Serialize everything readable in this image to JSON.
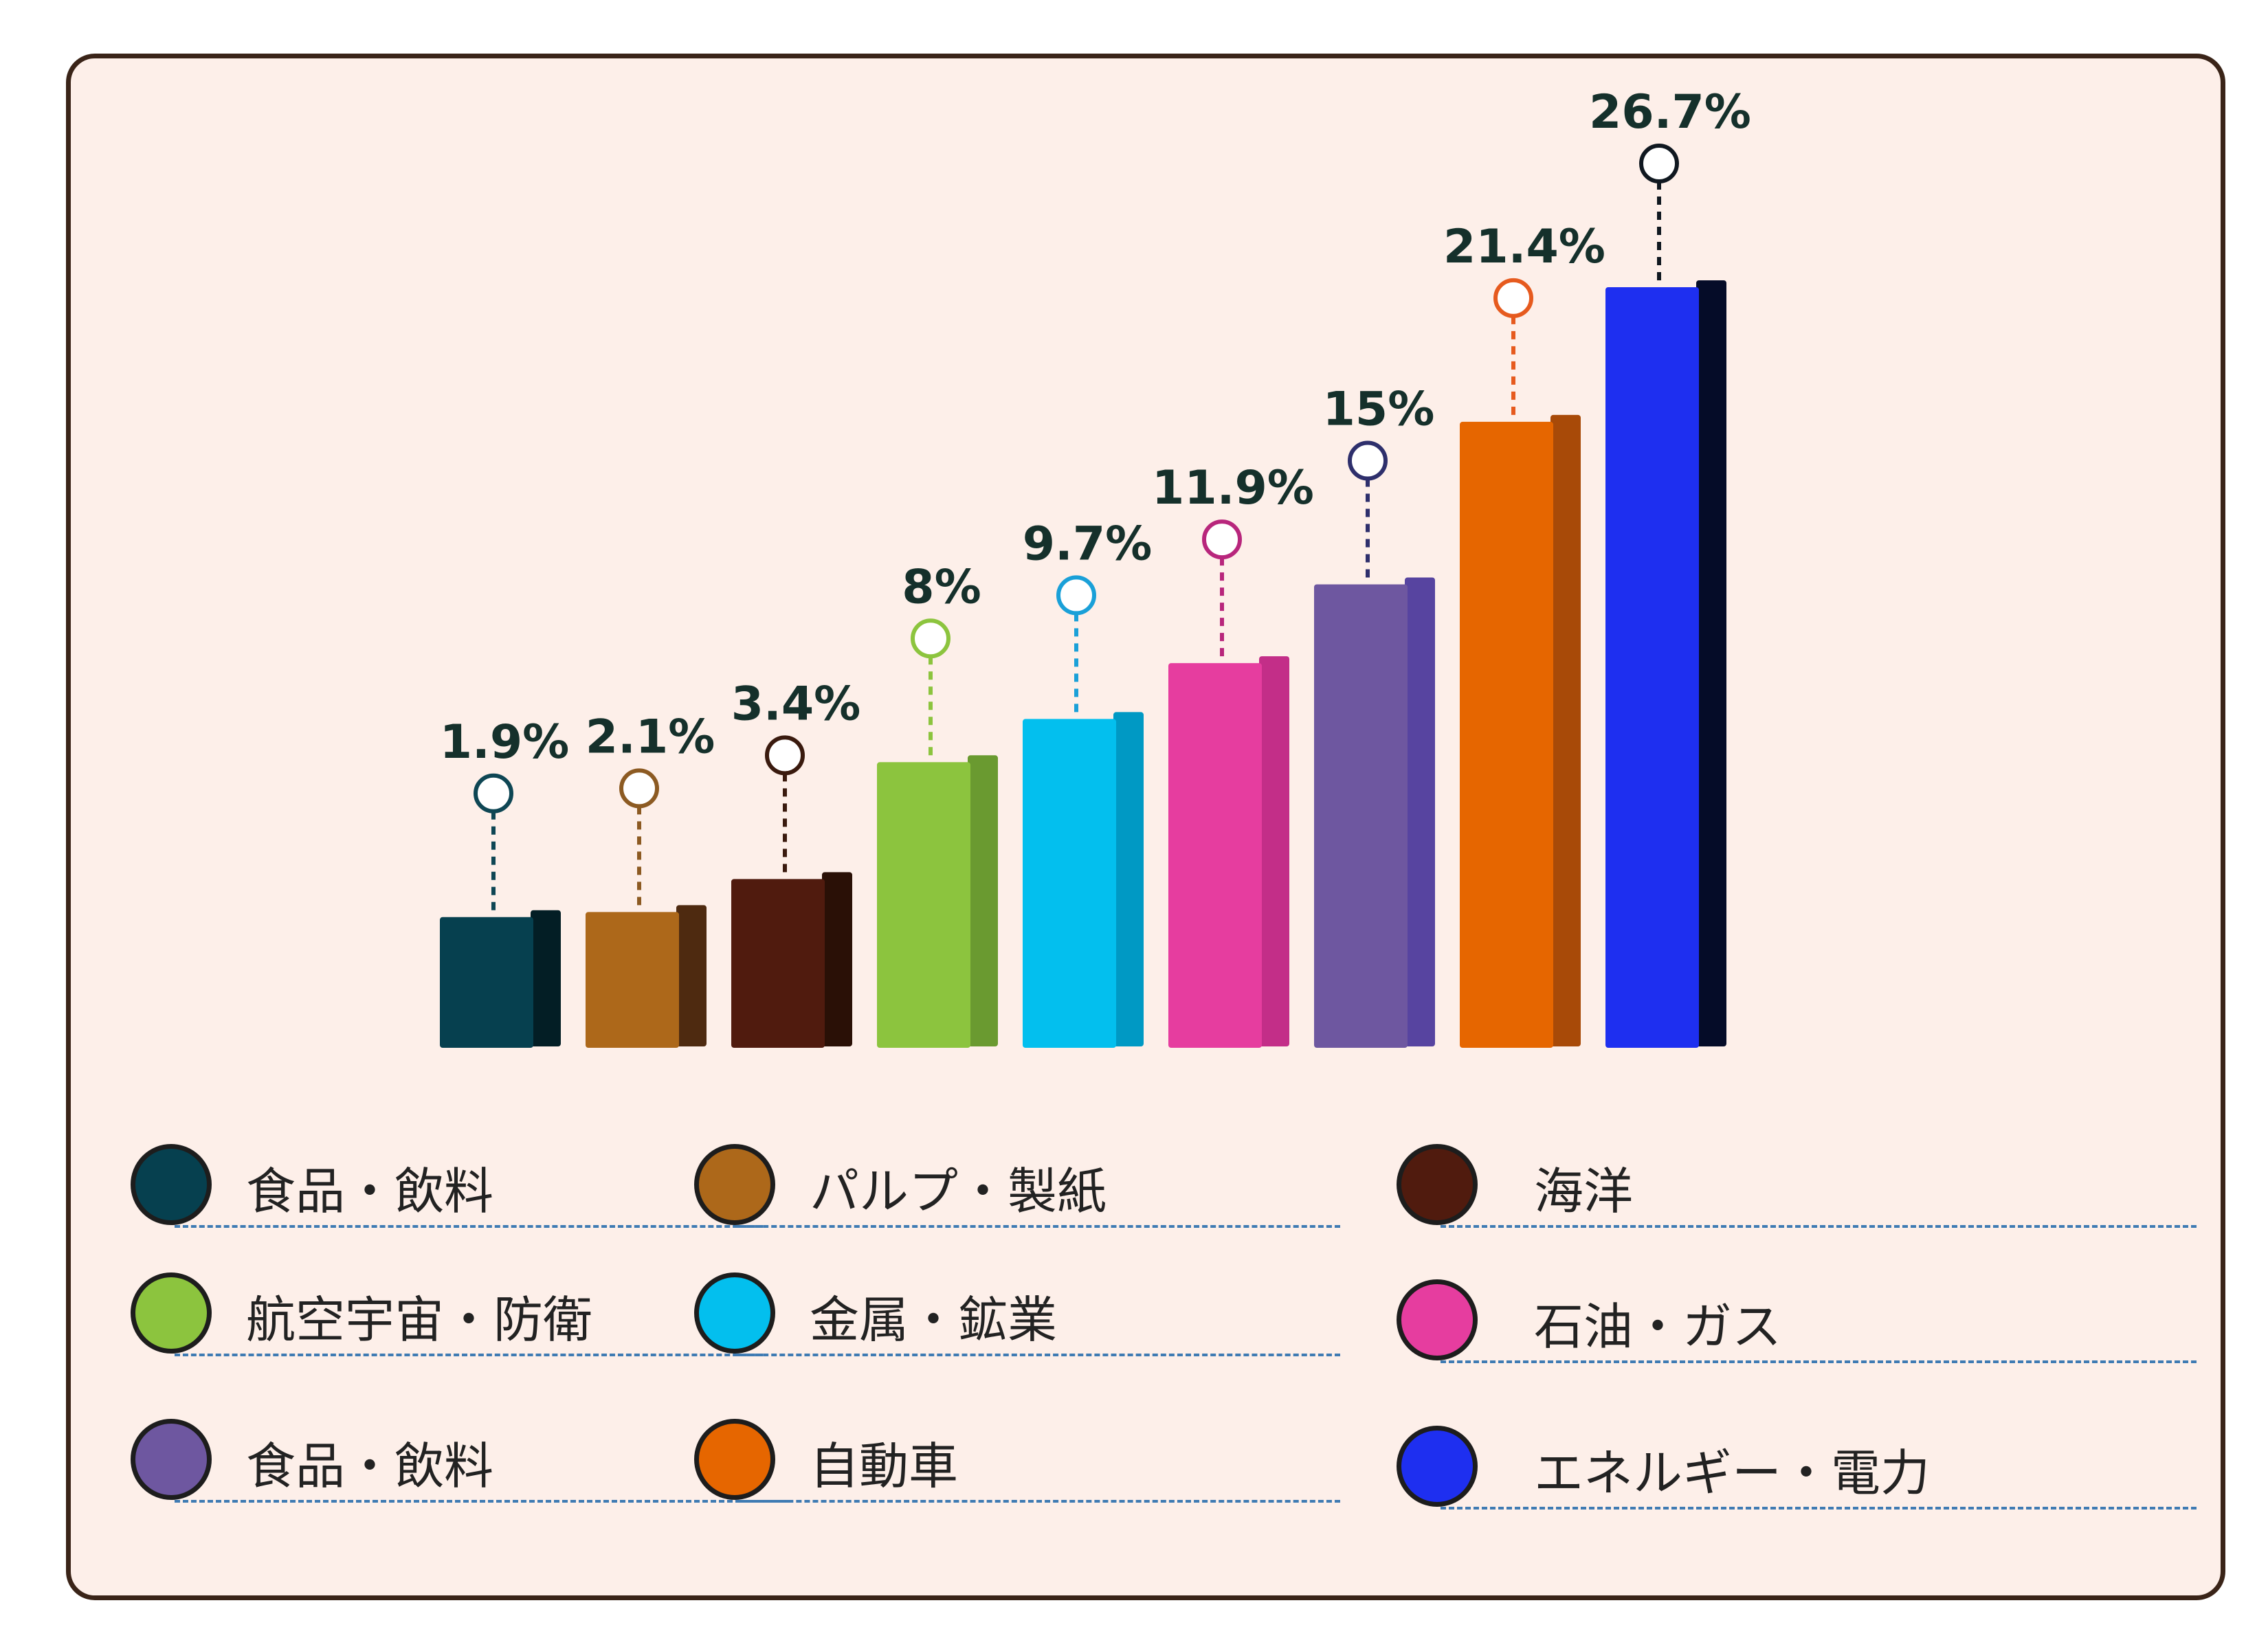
{
  "chart_data": {
    "type": "bar",
    "title": "",
    "xlabel": "",
    "ylabel": "",
    "ylim": [
      0,
      30
    ],
    "grid": false,
    "legend_position": "bottom",
    "value_suffix": "%",
    "categories": [
      "食品・飲料",
      "パルプ・製紙",
      "海洋",
      "航空宇宙・防衛",
      "金属・鉱業",
      "石油・ガス",
      "食品・飲料",
      "自動車",
      "エネルギー・電力"
    ],
    "values": [
      1.9,
      2.1,
      3.4,
      8,
      9.7,
      11.9,
      15,
      21.4,
      26.7
    ],
    "value_labels": [
      "1.9%",
      "2.1%",
      "3.4%",
      "8%",
      "9.7%",
      "11.9%",
      "15%",
      "21.4%",
      "26.7%"
    ],
    "colors": [
      "#06404f",
      "#ad681a",
      "#501b0e",
      "#8cc43e",
      "#03bfee",
      "#e63d9f",
      "#6e57a0",
      "#e66600",
      "#1e2ff0"
    ],
    "side_colors": [
      "#031e25",
      "#4e2a10",
      "#2a1006",
      "#6a9a30",
      "#0099c4",
      "#c32e88",
      "#5744a0",
      "#a84a08",
      "#050c28"
    ],
    "marker_colors": [
      "#0e4654",
      "#8c5a22",
      "#3a1a0e",
      "#8cc43e",
      "#1aa0d8",
      "#b8267c",
      "#2e2f6c",
      "#e65a1e",
      "#101820"
    ]
  },
  "legend": {
    "items": [
      {
        "label": "食品・飲料",
        "color": "#06404f"
      },
      {
        "label": "パルプ・製紙",
        "color": "#ad681a"
      },
      {
        "label": "海洋",
        "color": "#501b0e"
      },
      {
        "label": "航空宇宙・防衛",
        "color": "#8cc43e"
      },
      {
        "label": "金属・鉱業",
        "color": "#03bfee"
      },
      {
        "label": "石油・ガス",
        "color": "#e63d9f"
      },
      {
        "label": "食品・飲料",
        "color": "#6e57a0"
      },
      {
        "label": "自動車",
        "color": "#e66600"
      },
      {
        "label": "エネルギー・電力",
        "color": "#1e2ff0"
      }
    ]
  }
}
